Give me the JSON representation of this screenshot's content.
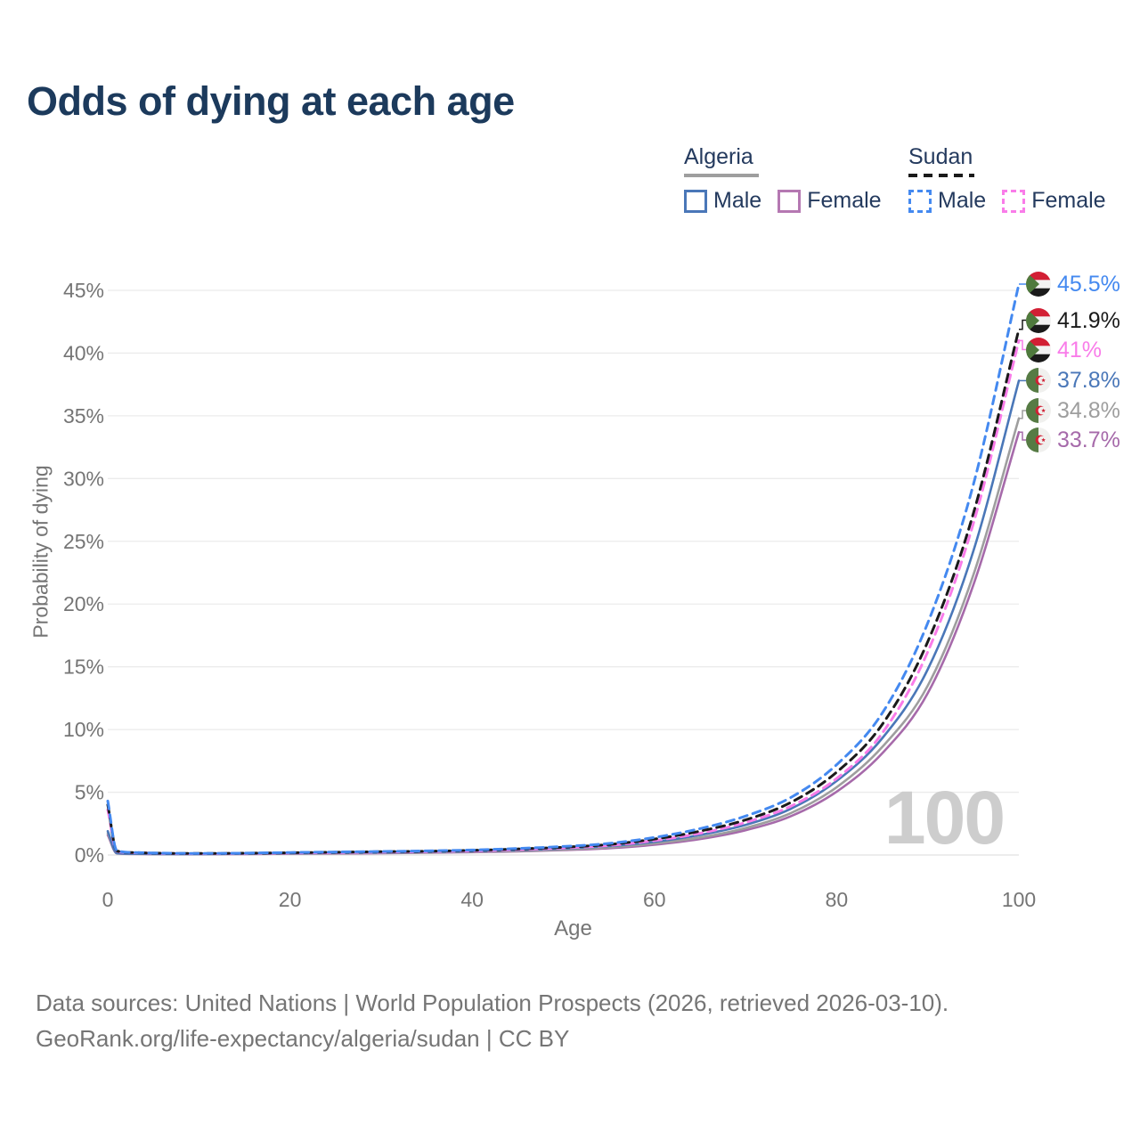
{
  "title": "Odds of dying at each age",
  "legend": {
    "groups": [
      {
        "label": "Algeria",
        "line_color": "#9e9e9e",
        "line_style": "solid",
        "items": [
          {
            "label": "Male",
            "color": "#4a77b8",
            "style": "solid"
          },
          {
            "label": "Female",
            "color": "#b578b2",
            "style": "solid"
          }
        ]
      },
      {
        "label": "Sudan",
        "line_color": "#1a1a1a",
        "line_style": "dashed",
        "items": [
          {
            "label": "Male",
            "color": "#4489f0",
            "style": "dashed"
          },
          {
            "label": "Female",
            "color": "#f97ce9",
            "style": "dashed"
          }
        ]
      }
    ]
  },
  "chart_data": {
    "type": "line",
    "title": "Odds of dying at each age",
    "xlabel": "Age",
    "ylabel": "Probability of dying",
    "xlim": [
      0,
      100
    ],
    "ylim": [
      0,
      45
    ],
    "x_ticks": [
      0,
      20,
      40,
      60,
      80,
      100
    ],
    "y_ticks": [
      0,
      5,
      10,
      15,
      20,
      25,
      30,
      35,
      40,
      45
    ],
    "y_tick_suffix": "%",
    "grid": "horizontal",
    "legend_position": "top-right",
    "watermark": "100",
    "x": [
      0,
      1,
      3,
      5,
      10,
      15,
      20,
      25,
      30,
      35,
      40,
      45,
      50,
      55,
      60,
      65,
      70,
      75,
      80,
      85,
      90,
      95,
      100
    ],
    "series": [
      {
        "id": "sudan-male",
        "name": "Sudan Male",
        "country": "Sudan",
        "sex": "Male",
        "flag": "sudan",
        "style": "dashed",
        "color": "#4489f0",
        "label_color": "#4489f0",
        "end_label": "45.5%",
        "values": [
          4.3,
          0.35,
          0.2,
          0.16,
          0.13,
          0.15,
          0.2,
          0.24,
          0.28,
          0.33,
          0.4,
          0.52,
          0.68,
          0.92,
          1.4,
          2.1,
          3.1,
          4.6,
          7.2,
          11.3,
          18.5,
          29.5,
          45.5
        ]
      },
      {
        "id": "sudan-both",
        "name": "Sudan",
        "country": "Sudan",
        "sex": "Both",
        "flag": "sudan",
        "style": "dashed",
        "color": "#1a1a1a",
        "label_color": "#1a1a1a",
        "end_label": "41.9%",
        "values": [
          4.0,
          0.33,
          0.19,
          0.15,
          0.12,
          0.14,
          0.18,
          0.22,
          0.26,
          0.3,
          0.37,
          0.48,
          0.62,
          0.84,
          1.27,
          1.9,
          2.8,
          4.2,
          6.6,
          10.4,
          17.0,
          27.2,
          41.9
        ]
      },
      {
        "id": "sudan-female",
        "name": "Sudan Female",
        "country": "Sudan",
        "sex": "Female",
        "flag": "sudan",
        "style": "dashed",
        "color": "#f97ce9",
        "label_color": "#f97ce9",
        "end_label": "41%",
        "values": [
          3.6,
          0.3,
          0.18,
          0.14,
          0.11,
          0.13,
          0.16,
          0.19,
          0.23,
          0.27,
          0.33,
          0.43,
          0.56,
          0.76,
          1.15,
          1.73,
          2.6,
          3.9,
          6.1,
          9.7,
          16.2,
          26.4,
          41.0
        ]
      },
      {
        "id": "algeria-male",
        "name": "Algeria Male",
        "country": "Algeria",
        "sex": "Male",
        "flag": "algeria",
        "style": "solid",
        "color": "#4a77b8",
        "label_color": "#4a77b8",
        "end_label": "37.8%",
        "values": [
          1.9,
          0.15,
          0.1,
          0.085,
          0.08,
          0.1,
          0.14,
          0.17,
          0.2,
          0.24,
          0.3,
          0.39,
          0.52,
          0.71,
          1.05,
          1.6,
          2.4,
          3.7,
          5.9,
          9.3,
          14.8,
          24.2,
          37.8
        ]
      },
      {
        "id": "algeria-both",
        "name": "Algeria",
        "country": "Algeria",
        "sex": "Both",
        "flag": "algeria",
        "style": "solid",
        "color": "#9e9e9e",
        "label_color": "#9e9e9e",
        "end_label": "34.8%",
        "values": [
          1.75,
          0.14,
          0.09,
          0.08,
          0.075,
          0.09,
          0.12,
          0.14,
          0.17,
          0.2,
          0.26,
          0.33,
          0.44,
          0.61,
          0.92,
          1.4,
          2.15,
          3.35,
          5.4,
          8.6,
          13.5,
          22.3,
          34.8
        ]
      },
      {
        "id": "algeria-female",
        "name": "Algeria Female",
        "country": "Algeria",
        "sex": "Female",
        "flag": "algeria",
        "style": "solid",
        "color": "#a66aaa",
        "label_color": "#a66aaa",
        "end_label": "33.7%",
        "values": [
          1.6,
          0.13,
          0.085,
          0.075,
          0.07,
          0.08,
          0.1,
          0.12,
          0.15,
          0.18,
          0.23,
          0.29,
          0.39,
          0.54,
          0.82,
          1.27,
          1.97,
          3.1,
          5.05,
          8.1,
          12.9,
          21.5,
          33.7
        ]
      }
    ]
  },
  "footer": {
    "line1": "Data sources: United Nations | World Population Prospects (2026, retrieved 2026-03-10).",
    "line2": "GeoRank.org/life-expectancy/algeria/sudan | CC BY"
  }
}
